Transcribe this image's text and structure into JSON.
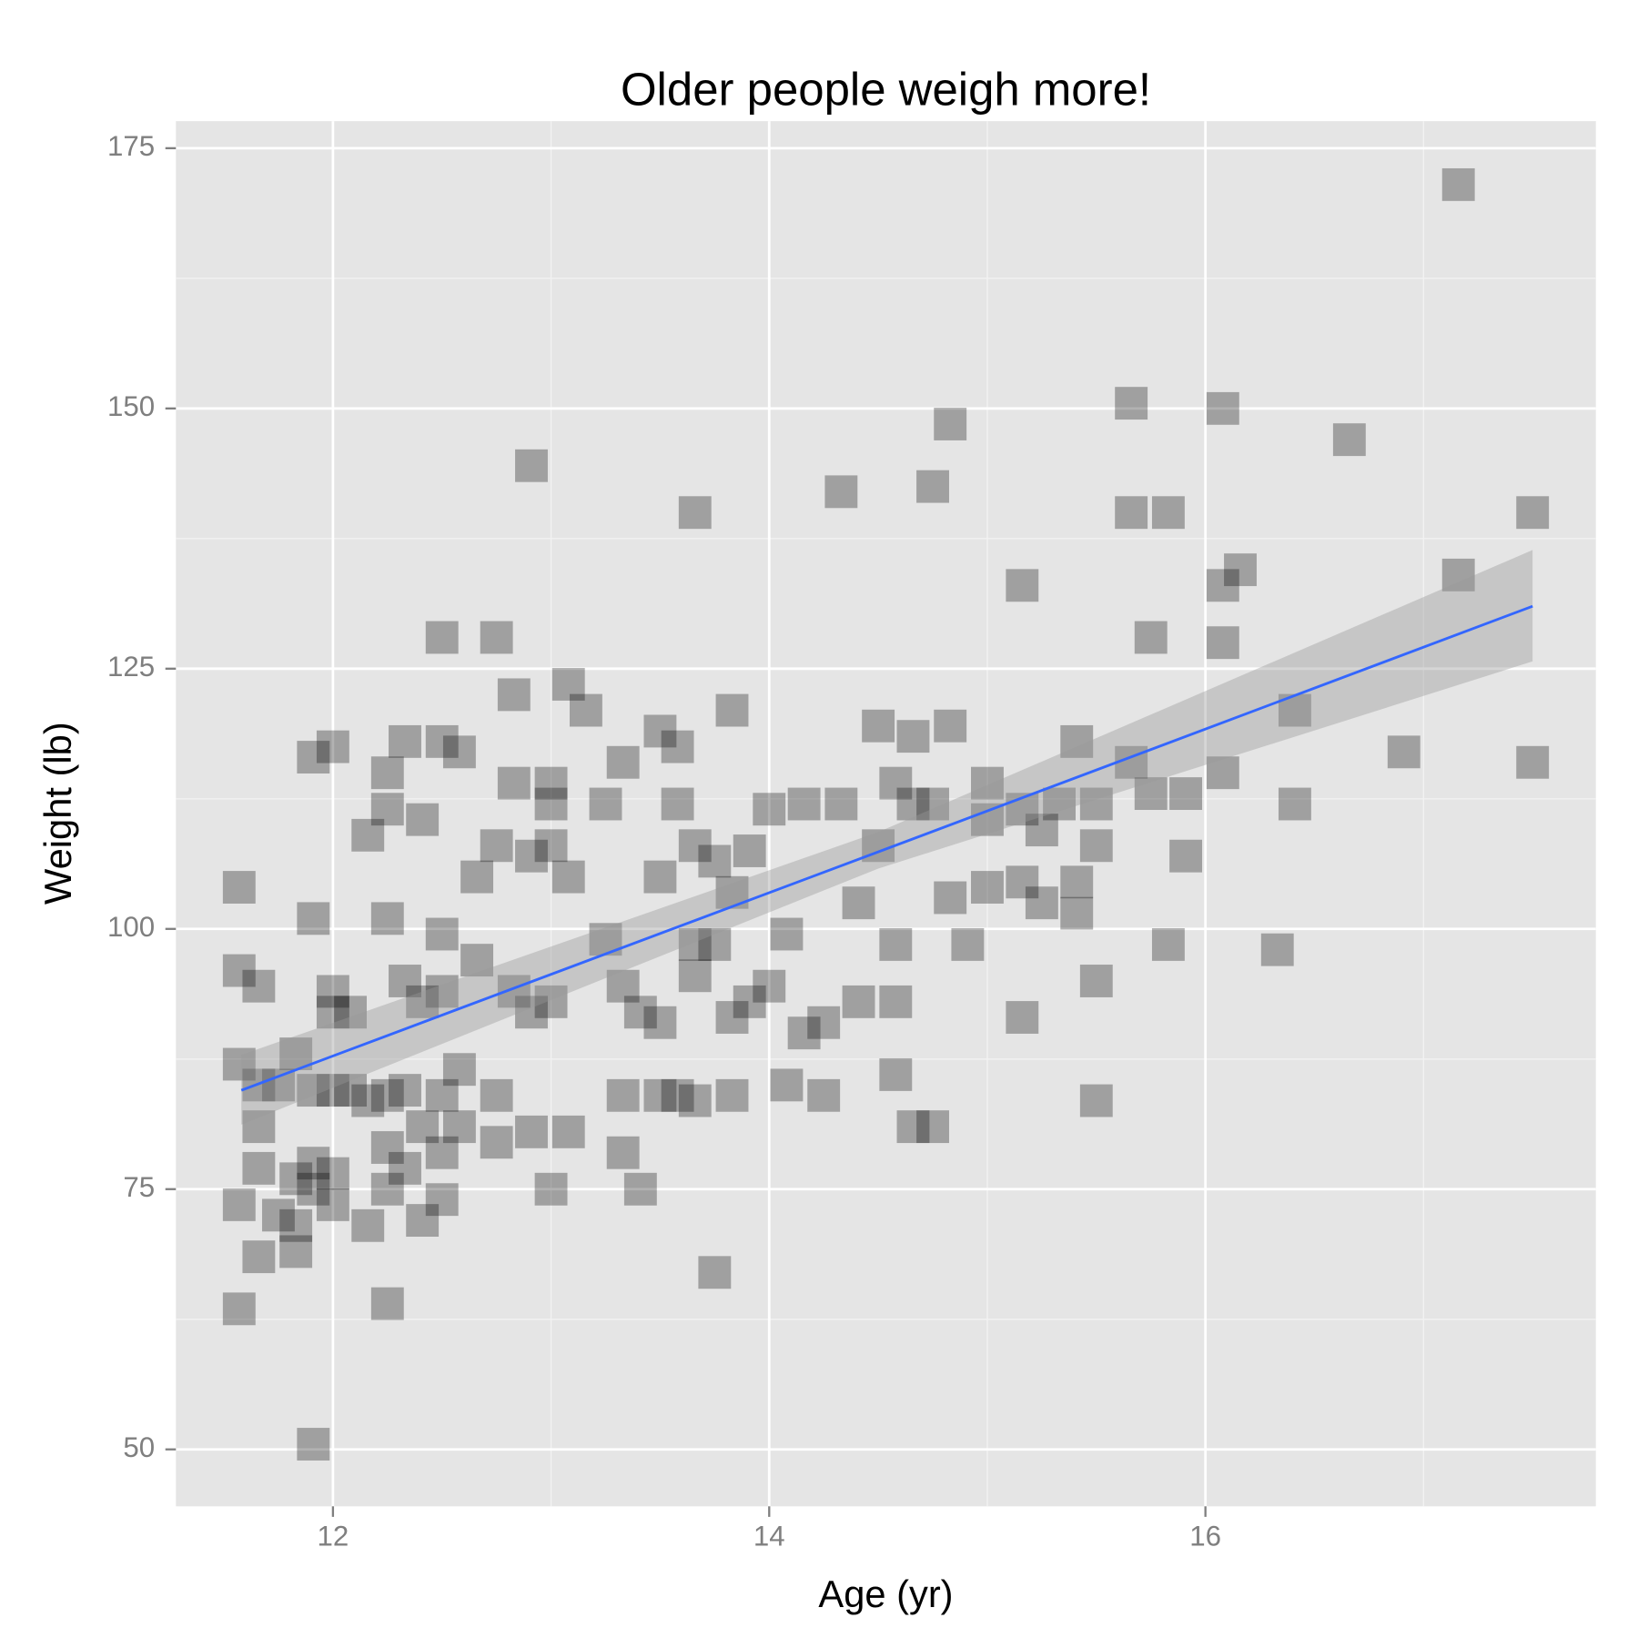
{
  "chart_data": {
    "type": "scatter",
    "title": "Older people weigh more!",
    "xlabel": "Age (yr)",
    "ylabel": "Weight (lb)",
    "x": [
      11.57,
      11.57,
      11.57,
      11.57,
      11.57,
      11.66,
      11.66,
      11.66,
      11.66,
      11.66,
      11.75,
      11.75,
      11.83,
      11.83,
      11.83,
      11.83,
      11.91,
      11.91,
      11.91,
      11.91,
      11.91,
      11.91,
      12,
      12,
      12,
      12,
      12,
      12,
      12.08,
      12.08,
      12.16,
      12.16,
      12.16,
      12.25,
      12.25,
      12.25,
      12.25,
      12.25,
      12.25,
      12.25,
      12.33,
      12.33,
      12.33,
      12.33,
      12.41,
      12.41,
      12.41,
      12.41,
      12.5,
      12.5,
      12.5,
      12.5,
      12.5,
      12.5,
      12.5,
      12.58,
      12.58,
      12.58,
      12.66,
      12.66,
      12.75,
      12.75,
      12.75,
      12.75,
      12.83,
      12.83,
      12.83,
      12.91,
      12.91,
      12.91,
      12.91,
      13,
      13,
      13,
      13,
      13,
      13.08,
      13.08,
      13.08,
      13.16,
      13.25,
      13.25,
      13.33,
      13.33,
      13.33,
      13.33,
      13.41,
      13.41,
      13.5,
      13.5,
      13.5,
      13.5,
      13.58,
      13.58,
      13.58,
      13.66,
      13.66,
      13.66,
      13.66,
      13.66,
      13.75,
      13.75,
      13.75,
      13.83,
      13.83,
      13.83,
      13.83,
      13.91,
      13.91,
      14,
      14,
      14.08,
      14.08,
      14.16,
      14.16,
      14.25,
      14.25,
      14.33,
      14.33,
      14.41,
      14.41,
      14.5,
      14.5,
      14.58,
      14.58,
      14.58,
      14.58,
      14.66,
      14.66,
      14.66,
      14.75,
      14.75,
      14.75,
      14.83,
      14.83,
      14.83,
      14.91,
      15,
      15,
      15,
      15.16,
      15.16,
      15.16,
      15.16,
      15.25,
      15.25,
      15.33,
      15.41,
      15.41,
      15.41,
      15.5,
      15.5,
      15.5,
      15.5,
      15.66,
      15.66,
      15.66,
      15.75,
      15.75,
      15.83,
      15.83,
      15.91,
      15.91,
      16.08,
      16.08,
      16.08,
      16.08,
      16.16,
      16.33,
      16.41,
      16.41,
      16.66,
      16.91,
      17.16,
      17.16,
      17.5,
      17.5
    ],
    "values": [
      104,
      96,
      87,
      73.5,
      63.5,
      94.5,
      81,
      77,
      68.5,
      85,
      85,
      72.5,
      88,
      76,
      69,
      71.5,
      116.5,
      101,
      84.5,
      77.5,
      50.5,
      75,
      117.5,
      94,
      84.5,
      73.5,
      92,
      76.5,
      92,
      84.5,
      109,
      83.5,
      71.5,
      115,
      111.5,
      101,
      84,
      79,
      75,
      64,
      118,
      95,
      84.5,
      77,
      110.5,
      93,
      81,
      72,
      128,
      118,
      99.5,
      94,
      84,
      78.5,
      74,
      117,
      86.5,
      81,
      97,
      105,
      128,
      108,
      84,
      79.5,
      122.5,
      114,
      94,
      144.5,
      107,
      92,
      80.5,
      114,
      112,
      108,
      93,
      75,
      123.5,
      105,
      80.5,
      121,
      112,
      99,
      116,
      94.5,
      84,
      78.5,
      92,
      75,
      119,
      105,
      91,
      84,
      117.5,
      112,
      84,
      140,
      108,
      98.5,
      95.5,
      83.5,
      106.5,
      98.5,
      67,
      121,
      103.5,
      91.5,
      84,
      107.5,
      93,
      111.5,
      94.5,
      99.5,
      85,
      112,
      90,
      84,
      91,
      142,
      112,
      102.5,
      93,
      119.5,
      108,
      114,
      98.5,
      93,
      86,
      112,
      81,
      118.5,
      142.5,
      81,
      112,
      148.5,
      119.5,
      103,
      98.5,
      114,
      110.5,
      104,
      133,
      111.5,
      104.5,
      91.5,
      102.5,
      109.5,
      112,
      118,
      104.5,
      101.5,
      112,
      108,
      95,
      83.5,
      150.5,
      140,
      116,
      128,
      113,
      140,
      98.5,
      113,
      107,
      150,
      133,
      127.5,
      115,
      134.5,
      98,
      121,
      112,
      147,
      117,
      171.5,
      134,
      140,
      116
    ],
    "marker_color": "#000000",
    "marker_opacity": 0.3,
    "fit": {
      "x": [
        11.58,
        14.5,
        17.5
      ],
      "values": [
        84.5,
        107.4,
        131
      ],
      "lower": [
        81.2,
        105.8,
        125.7
      ],
      "upper": [
        87.9,
        109.3,
        136.4
      ],
      "color": "#3366ff",
      "band_color": "#999999"
    },
    "xlim": [
      11.28,
      17.79
    ],
    "ylim": [
      44.53,
      177.6
    ],
    "xticks": [
      12,
      14,
      16
    ],
    "yticks": [
      50,
      75,
      100,
      125,
      150,
      175
    ],
    "grid": true
  }
}
